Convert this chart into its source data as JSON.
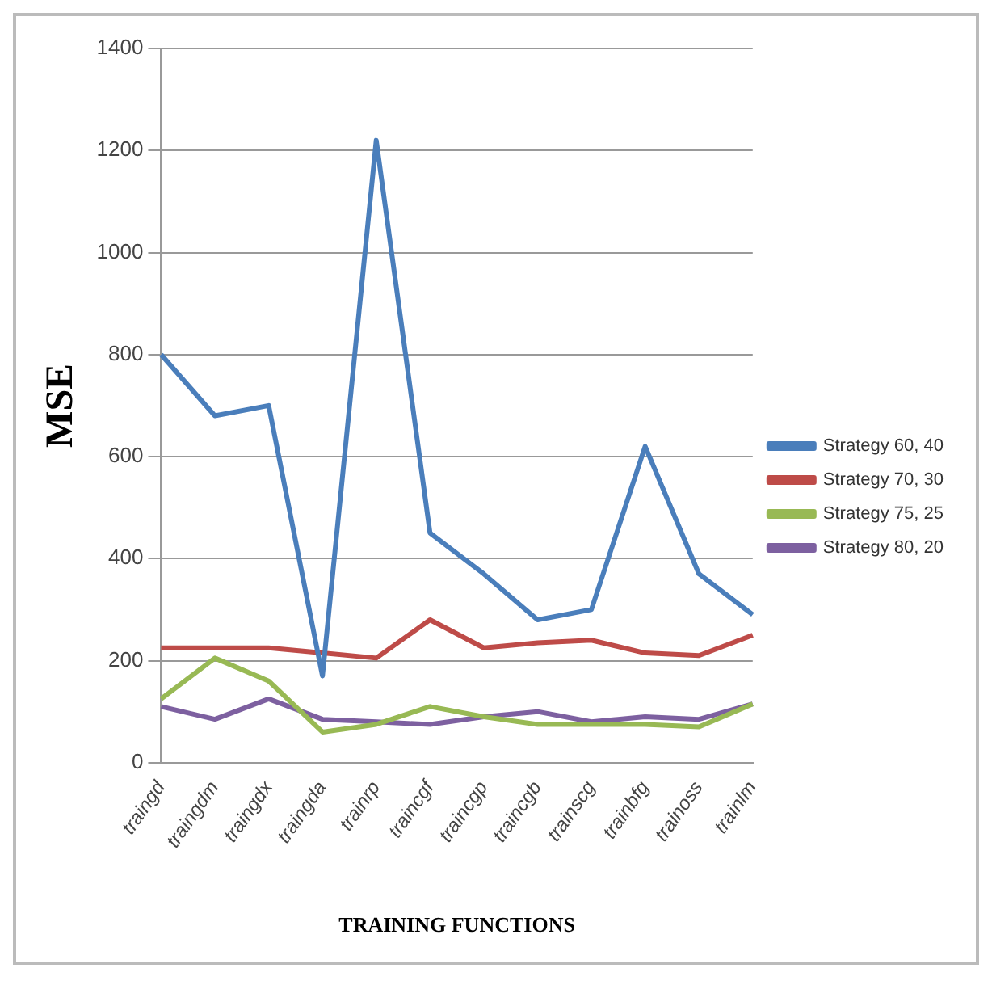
{
  "chart_data": {
    "type": "line",
    "xlabel": "TRAINING FUNCTIONS",
    "ylabel": "MSE",
    "categories": [
      "traingd",
      "traingdm",
      "traingdx",
      "traingda",
      "trainrp",
      "traincgf",
      "traincgp",
      "traincgb",
      "trainscg",
      "trainbfg",
      "trainoss",
      "trainlm"
    ],
    "series": [
      {
        "name": "Strategy 60, 40",
        "color": "#4a7ebb",
        "values": [
          800,
          680,
          700,
          170,
          1220,
          450,
          370,
          280,
          300,
          620,
          370,
          290
        ]
      },
      {
        "name": "Strategy 70, 30",
        "color": "#be4b48",
        "values": [
          225,
          225,
          225,
          215,
          205,
          280,
          225,
          235,
          240,
          215,
          210,
          250
        ]
      },
      {
        "name": "Strategy 75, 25",
        "color": "#98b954",
        "values": [
          125,
          205,
          160,
          60,
          75,
          110,
          90,
          75,
          75,
          75,
          70,
          115
        ]
      },
      {
        "name": "Strategy 80, 20",
        "color": "#7d60a0",
        "values": [
          110,
          85,
          125,
          85,
          80,
          75,
          90,
          100,
          80,
          90,
          85,
          115
        ]
      }
    ],
    "ylim": [
      0,
      1400
    ],
    "yticks": [
      0,
      200,
      400,
      600,
      800,
      1000,
      1200,
      1400
    ],
    "grid": "y",
    "legend": "right",
    "marker": "none",
    "line_style": "solid"
  }
}
